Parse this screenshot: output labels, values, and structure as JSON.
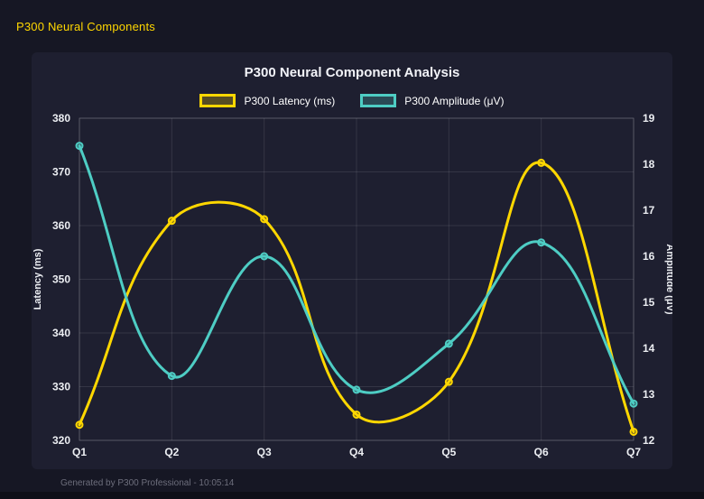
{
  "header": {
    "title": "P300 Neural Components"
  },
  "footer": {
    "text": "Generated by P300 Professional - 10:05:14"
  },
  "chart_data": {
    "type": "line",
    "title": "P300 Neural Component Analysis",
    "categories": [
      "Q1",
      "Q2",
      "Q3",
      "Q4",
      "Q5",
      "Q6",
      "Q7"
    ],
    "series": [
      {
        "name": "P300 Latency (ms)",
        "axis": "left",
        "color": "#ffd700",
        "values": [
          322.9,
          360.9,
          361.2,
          324.8,
          330.9,
          371.7,
          321.6
        ]
      },
      {
        "name": "P300 Amplitude (μV)",
        "axis": "right",
        "color": "#4ecdc4",
        "values": [
          18.4,
          13.4,
          16.0,
          13.1,
          14.1,
          16.3,
          12.8
        ]
      }
    ],
    "left_axis": {
      "label": "Latency (ms)",
      "min": 320,
      "max": 380,
      "ticks": [
        320,
        330,
        340,
        350,
        360,
        370,
        380
      ]
    },
    "right_axis": {
      "label": "Amplitude (μV)",
      "min": 12,
      "max": 19,
      "ticks": [
        12,
        13,
        14,
        15,
        16,
        17,
        18,
        19
      ]
    },
    "legend_position": "top",
    "grid": true,
    "line_tension": 0.4
  },
  "colors": {
    "page_bg": "#161724",
    "card_bg": "#1e1f30",
    "accent_yellow": "#ffd700",
    "accent_teal": "#4ecdc4",
    "grid": "rgba(255,255,255,0.10)",
    "plot_border": "rgba(255,255,255,0.18)",
    "tick_text": "#eceef2",
    "muted_text": "#6d6e7c"
  }
}
